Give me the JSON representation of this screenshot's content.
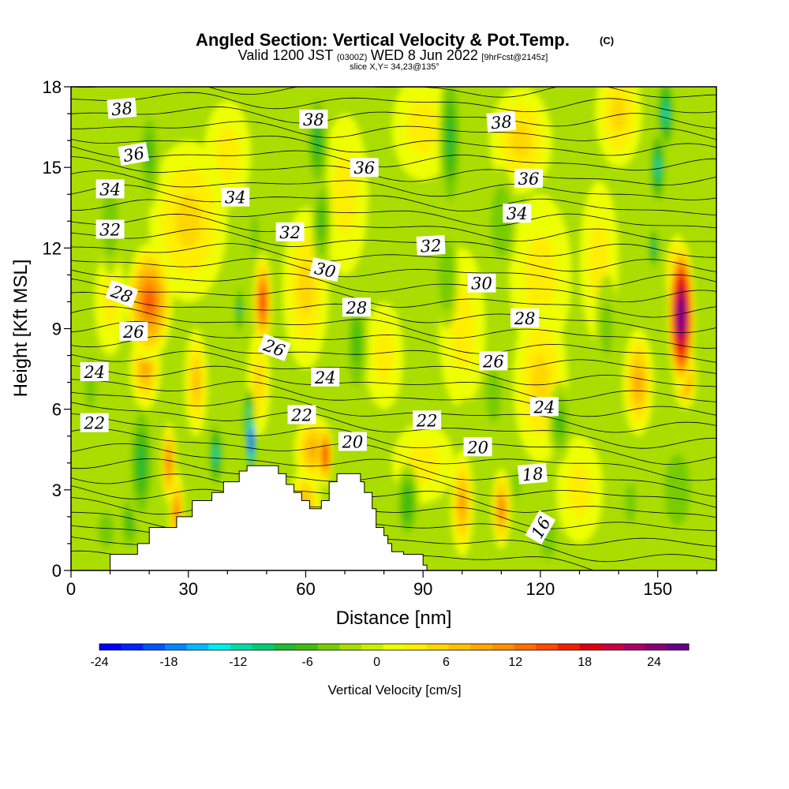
{
  "chart_data": {
    "type": "heatmap",
    "title": "Angled Section: Vertical Velocity & Pot.Temp.",
    "title_mark": "(C)",
    "subtitle_parts": {
      "valid": "Valid 1200 JST",
      "utc": "(0300Z)",
      "date": "WED 8 Jun 2022",
      "fcst": "[9hrFcst@2145z]"
    },
    "slice_label": "slice X,Y= 34,23@135°",
    "xlabel": "Distance [nm]",
    "ylabel": "Height [Kft MSL]",
    "xlim": [
      0,
      165
    ],
    "ylim": [
      0,
      18
    ],
    "x_ticks": [
      0,
      30,
      60,
      90,
      120,
      150
    ],
    "y_ticks": [
      0,
      3,
      6,
      9,
      12,
      15,
      18
    ],
    "colorbar": {
      "label": "Vertical Velocity [cm/s]",
      "range": [
        -24,
        27
      ],
      "ticks": [
        -24,
        -18,
        -12,
        -6,
        0,
        6,
        12,
        18,
        24
      ],
      "colors": [
        "#0000ff",
        "#0022ff",
        "#0055ff",
        "#0088ff",
        "#00bbff",
        "#00eeee",
        "#00ddaa",
        "#00cc77",
        "#22bb33",
        "#44bb11",
        "#77cc00",
        "#aadd00",
        "#ccee00",
        "#eeff00",
        "#ffee00",
        "#ffd700",
        "#ffc000",
        "#ffa800",
        "#ff9000",
        "#ff7000",
        "#ff4a00",
        "#ee2200",
        "#dd0011",
        "#cc0044",
        "#aa0066",
        "#880077",
        "#660088"
      ]
    },
    "isentrope_labels": [
      {
        "text": "38",
        "x": 13,
        "z": 17.2,
        "rot": -5
      },
      {
        "text": "38",
        "x": 62,
        "z": 16.8,
        "rot": 0
      },
      {
        "text": "38",
        "x": 110,
        "z": 16.7,
        "rot": -5
      },
      {
        "text": "36",
        "x": 16,
        "z": 15.5,
        "rot": -10
      },
      {
        "text": "36",
        "x": 75,
        "z": 15.0,
        "rot": 0
      },
      {
        "text": "36",
        "x": 117,
        "z": 14.6,
        "rot": 0
      },
      {
        "text": "34",
        "x": 10,
        "z": 14.2,
        "rot": 0
      },
      {
        "text": "34",
        "x": 42,
        "z": 13.9,
        "rot": 0
      },
      {
        "text": "34",
        "x": 114,
        "z": 13.3,
        "rot": 0
      },
      {
        "text": "32",
        "x": 10,
        "z": 12.7,
        "rot": 0
      },
      {
        "text": "32",
        "x": 56,
        "z": 12.6,
        "rot": 0
      },
      {
        "text": "32",
        "x": 92,
        "z": 12.1,
        "rot": -3
      },
      {
        "text": "30",
        "x": 65,
        "z": 11.2,
        "rot": 12
      },
      {
        "text": "30",
        "x": 105,
        "z": 10.7,
        "rot": 0
      },
      {
        "text": "28",
        "x": 13,
        "z": 10.3,
        "rot": 20
      },
      {
        "text": "28",
        "x": 73,
        "z": 9.8,
        "rot": 0
      },
      {
        "text": "28",
        "x": 116,
        "z": 9.4,
        "rot": 0
      },
      {
        "text": "26",
        "x": 16,
        "z": 8.9,
        "rot": 0
      },
      {
        "text": "26",
        "x": 52,
        "z": 8.3,
        "rot": 20
      },
      {
        "text": "26",
        "x": 108,
        "z": 7.8,
        "rot": 0
      },
      {
        "text": "24",
        "x": 6,
        "z": 7.4,
        "rot": 0
      },
      {
        "text": "24",
        "x": 65,
        "z": 7.2,
        "rot": 0
      },
      {
        "text": "24",
        "x": 121,
        "z": 6.1,
        "rot": 0
      },
      {
        "text": "22",
        "x": 6,
        "z": 5.5,
        "rot": 0
      },
      {
        "text": "22",
        "x": 59,
        "z": 5.8,
        "rot": 0
      },
      {
        "text": "22",
        "x": 91,
        "z": 5.6,
        "rot": 0
      },
      {
        "text": "20",
        "x": 72,
        "z": 4.8,
        "rot": 0
      },
      {
        "text": "20",
        "x": 104,
        "z": 4.6,
        "rot": 0
      },
      {
        "text": "18",
        "x": 118,
        "z": 3.6,
        "rot": -5
      },
      {
        "text": "16",
        "x": 120,
        "z": 1.6,
        "rot": -60
      }
    ],
    "velocity_cells": [
      {
        "x": 20,
        "z": 10,
        "sx": 6,
        "sz": 2.2,
        "v": 15
      },
      {
        "x": 19,
        "z": 7.5,
        "sx": 4,
        "sz": 1.5,
        "v": 9
      },
      {
        "x": 32,
        "z": 7,
        "sx": 3,
        "sz": 2,
        "v": 8
      },
      {
        "x": 49,
        "z": 10,
        "sx": 2.5,
        "sz": 1.8,
        "v": 16
      },
      {
        "x": 48,
        "z": 7,
        "sx": 3,
        "sz": 2,
        "v": 6
      },
      {
        "x": 25,
        "z": 4,
        "sx": 2,
        "sz": 1.5,
        "v": 13
      },
      {
        "x": 27,
        "z": 2.2,
        "sx": 2,
        "sz": 1.5,
        "v": 12
      },
      {
        "x": 62,
        "z": 4.5,
        "sx": 5,
        "sz": 1.3,
        "v": 9
      },
      {
        "x": 65,
        "z": 4.3,
        "sx": 1.8,
        "sz": 1.2,
        "v": 18
      },
      {
        "x": 60,
        "z": 2.5,
        "sx": 4,
        "sz": 1.5,
        "v": 7
      },
      {
        "x": 100,
        "z": 2.5,
        "sx": 3,
        "sz": 2,
        "v": 10
      },
      {
        "x": 110,
        "z": 2.3,
        "sx": 2.5,
        "sz": 1.5,
        "v": 12
      },
      {
        "x": 156,
        "z": 9.5,
        "sx": 3.5,
        "sz": 2.8,
        "v": 30
      },
      {
        "x": 155,
        "z": 11,
        "sx": 3,
        "sz": 1.5,
        "v": 14
      },
      {
        "x": 157,
        "z": 7.2,
        "sx": 3,
        "sz": 1.2,
        "v": 14
      },
      {
        "x": 145,
        "z": 7,
        "sx": 4,
        "sz": 2,
        "v": 9
      },
      {
        "x": 120,
        "z": 7,
        "sx": 7,
        "sz": 3,
        "v": 5
      },
      {
        "x": 100,
        "z": 9,
        "sx": 6,
        "sz": 3,
        "v": 3
      },
      {
        "x": 120,
        "z": 11,
        "sx": 8,
        "sz": 3,
        "v": 3
      },
      {
        "x": 30,
        "z": 13,
        "sx": 10,
        "sz": 3,
        "v": 5
      },
      {
        "x": 60,
        "z": 10.5,
        "sx": 6,
        "sz": 3,
        "v": 5
      },
      {
        "x": 40,
        "z": 15.5,
        "sx": 6,
        "sz": 2,
        "v": 4
      },
      {
        "x": 70,
        "z": 14,
        "sx": 6,
        "sz": 3,
        "v": 3
      },
      {
        "x": 90,
        "z": 16.5,
        "sx": 8,
        "sz": 2,
        "v": 4
      },
      {
        "x": 115,
        "z": 16,
        "sx": 8,
        "sz": 2,
        "v": 5
      },
      {
        "x": 140,
        "z": 17,
        "sx": 6,
        "sz": 2,
        "v": 5
      },
      {
        "x": 135,
        "z": 11.5,
        "sx": 5,
        "sz": 3,
        "v": 4
      },
      {
        "x": 10,
        "z": 10,
        "sx": 4,
        "sz": 2,
        "v": 4
      },
      {
        "x": 80,
        "z": 8,
        "sx": 5,
        "sz": 2,
        "v": 3
      },
      {
        "x": 90,
        "z": 4,
        "sx": 8,
        "sz": 1.5,
        "v": 3
      },
      {
        "x": 130,
        "z": 3,
        "sx": 6,
        "sz": 2,
        "v": 4
      },
      {
        "x": 46,
        "z": 4.8,
        "sx": 1.3,
        "sz": 1.2,
        "v": -28
      },
      {
        "x": 45.5,
        "z": 5.6,
        "sx": 1.6,
        "sz": 1.2,
        "v": -15
      },
      {
        "x": 37,
        "z": 4.3,
        "sx": 2,
        "sz": 1.3,
        "v": -11
      },
      {
        "x": 43,
        "z": 9.7,
        "sx": 1.3,
        "sz": 1,
        "v": -9
      },
      {
        "x": 30,
        "z": 9,
        "sx": 3,
        "sz": 1.5,
        "v": -3
      },
      {
        "x": 18,
        "z": 4,
        "sx": 3.5,
        "sz": 2.5,
        "v": -8
      },
      {
        "x": 152,
        "z": 17,
        "sx": 2.5,
        "sz": 1.5,
        "v": -11
      },
      {
        "x": 150,
        "z": 15,
        "sx": 2.2,
        "sz": 1.5,
        "v": -11
      },
      {
        "x": 149,
        "z": 12,
        "sx": 1.6,
        "sz": 0.9,
        "v": -10
      },
      {
        "x": 15,
        "z": 1.8,
        "sx": 3,
        "sz": 1.3,
        "v": -6
      },
      {
        "x": 9,
        "z": 1.5,
        "sx": 3,
        "sz": 1,
        "v": -5
      },
      {
        "x": 86,
        "z": 2.5,
        "sx": 3,
        "sz": 1.5,
        "v": -7
      },
      {
        "x": 97,
        "z": 16,
        "sx": 3,
        "sz": 3,
        "v": -8
      },
      {
        "x": 96,
        "z": 11,
        "sx": 3,
        "sz": 2,
        "v": -5
      },
      {
        "x": 110,
        "z": 13,
        "sx": 4,
        "sz": 2,
        "v": -5
      },
      {
        "x": 73,
        "z": 8.5,
        "sx": 3,
        "sz": 2.5,
        "v": -6
      },
      {
        "x": 63,
        "z": 16,
        "sx": 3,
        "sz": 2,
        "v": -8
      },
      {
        "x": 64,
        "z": 13,
        "sx": 2.5,
        "sz": 2,
        "v": -6
      },
      {
        "x": 20,
        "z": 15.5,
        "sx": 3,
        "sz": 2,
        "v": -6
      },
      {
        "x": 10,
        "z": 13,
        "sx": 3,
        "sz": 2,
        "v": -5
      },
      {
        "x": 47,
        "z": 12.5,
        "sx": 2,
        "sz": 1.5,
        "v": -4
      },
      {
        "x": 125,
        "z": 5.5,
        "sx": 3,
        "sz": 1.5,
        "v": -6
      },
      {
        "x": 108,
        "z": 6.5,
        "sx": 3,
        "sz": 1.5,
        "v": -5
      },
      {
        "x": 114,
        "z": 3.2,
        "sx": 2,
        "sz": 1,
        "v": -4
      },
      {
        "x": 122,
        "z": 1.2,
        "sx": 3,
        "sz": 1.2,
        "v": -5
      },
      {
        "x": 155,
        "z": 3,
        "sx": 5,
        "sz": 2,
        "v": -5
      },
      {
        "x": 143,
        "z": 2.5,
        "sx": 3,
        "sz": 1.5,
        "v": -4
      },
      {
        "x": 137,
        "z": 9,
        "sx": 3,
        "sz": 2,
        "v": -4
      },
      {
        "x": 5,
        "z": 7,
        "sx": 3,
        "sz": 2,
        "v": -4
      },
      {
        "x": 24,
        "z": 12,
        "sx": 3,
        "sz": 1.5,
        "v": -3
      },
      {
        "x": 102,
        "z": 5.4,
        "sx": 5,
        "sz": 1,
        "v": -3
      }
    ],
    "terrain_kft": [
      [
        0,
        0
      ],
      [
        10,
        0.6
      ],
      [
        17,
        1
      ],
      [
        20,
        1.6
      ],
      [
        24,
        1.6
      ],
      [
        27,
        2
      ],
      [
        31,
        2.6
      ],
      [
        36,
        2.9
      ],
      [
        39,
        3.3
      ],
      [
        43,
        3.7
      ],
      [
        45,
        3.9
      ],
      [
        52,
        3.9
      ],
      [
        53,
        3.6
      ],
      [
        55,
        3.2
      ],
      [
        57,
        2.9
      ],
      [
        59,
        2.6
      ],
      [
        61,
        2.3
      ],
      [
        64,
        2.6
      ],
      [
        66,
        3.3
      ],
      [
        68,
        3.6
      ],
      [
        72,
        3.6
      ],
      [
        74,
        3.3
      ],
      [
        75,
        2.9
      ],
      [
        77,
        2.3
      ],
      [
        78,
        1.6
      ],
      [
        80,
        1.3
      ],
      [
        81,
        1
      ],
      [
        82,
        0.7
      ],
      [
        85,
        0.6
      ],
      [
        90,
        0.2
      ],
      [
        91,
        0
      ]
    ]
  }
}
